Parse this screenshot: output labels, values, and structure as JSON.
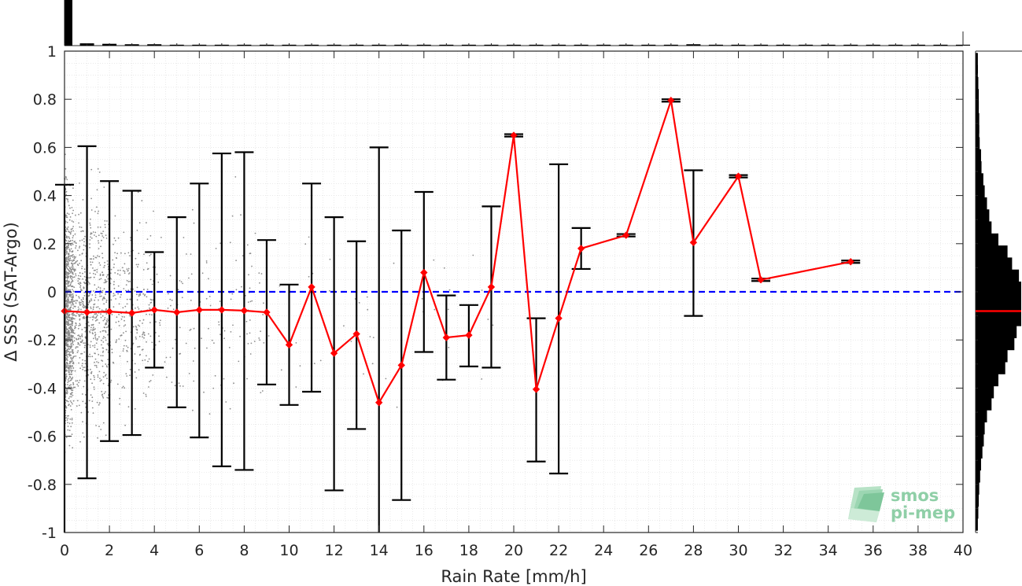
{
  "chart_data": {
    "type": "line",
    "xlabel": "Rain Rate [mm/h]",
    "ylabel": "Δ SSS (SAT-Argo)",
    "xlim": [
      0,
      40
    ],
    "ylim": [
      -1,
      1
    ],
    "x_ticks": [
      0,
      2,
      4,
      6,
      8,
      10,
      12,
      14,
      16,
      18,
      20,
      22,
      24,
      26,
      28,
      30,
      32,
      34,
      36,
      38,
      40
    ],
    "x_tick_labels": [
      "0",
      "2",
      "4",
      "6",
      "8",
      "10",
      "12",
      "14",
      "16",
      "18",
      "20",
      "22",
      "24",
      "26",
      "28",
      "30",
      "32",
      "34",
      "36",
      "38",
      "40"
    ],
    "y_ticks": [
      1,
      0.8,
      0.6,
      0.4,
      0.2,
      0,
      -0.2,
      -0.4,
      -0.6,
      -0.8,
      -1
    ],
    "y_tick_labels": [
      "1",
      "0.8",
      "0.6",
      "0.4",
      "0.2",
      "0",
      "-0.2",
      "-0.4",
      "-0.6",
      "-0.8",
      "-1"
    ],
    "grid": "minor dotted",
    "reference_line": {
      "y": 0,
      "color": "#0000ff",
      "style": "dashed"
    },
    "mean_series": {
      "color": "#ff0000",
      "x": [
        0,
        1,
        2,
        3,
        4,
        5,
        6,
        7,
        8,
        9,
        10,
        11,
        12,
        13,
        14,
        15,
        16,
        17,
        18,
        19,
        20,
        21,
        22,
        23,
        25,
        27,
        28,
        30,
        31,
        35
      ],
      "mean": [
        -0.08,
        -0.085,
        -0.082,
        -0.088,
        -0.075,
        -0.085,
        -0.075,
        -0.075,
        -0.078,
        -0.085,
        -0.22,
        0.02,
        -0.255,
        -0.175,
        -0.46,
        -0.305,
        0.08,
        -0.19,
        -0.18,
        0.02,
        0.65,
        -0.405,
        -0.11,
        0.18,
        0.235,
        0.795,
        0.205,
        0.48,
        0.05,
        0.125
      ],
      "upper": [
        0.445,
        0.605,
        0.46,
        0.42,
        0.165,
        0.31,
        0.45,
        0.575,
        0.58,
        0.215,
        0.03,
        0.45,
        0.31,
        0.21,
        0.6,
        0.255,
        0.415,
        -0.015,
        -0.055,
        0.355,
        0.655,
        -0.11,
        0.53,
        0.265,
        0.24,
        0.8,
        0.505,
        0.485,
        0.055,
        0.13
      ],
      "lower": [
        -1,
        -0.775,
        -0.62,
        -0.595,
        -0.315,
        -0.48,
        -0.605,
        -0.725,
        -0.74,
        -0.385,
        -0.47,
        -0.415,
        -0.825,
        -0.57,
        -1,
        -0.865,
        -0.25,
        -0.365,
        -0.31,
        -0.315,
        0.645,
        -0.705,
        -0.755,
        0.095,
        0.23,
        0.79,
        -0.1,
        0.475,
        0.045,
        0.12
      ]
    },
    "scatter_color": "#8c8c8c",
    "top_histogram": {
      "bin_centers": [
        0.25,
        1,
        2,
        3,
        4,
        5,
        6,
        7,
        8,
        9,
        10,
        11,
        12,
        13,
        14,
        15,
        16,
        17,
        18,
        19,
        20,
        21,
        22,
        23,
        24,
        25,
        26,
        27,
        28,
        29,
        30,
        31,
        32,
        33,
        34,
        35,
        36,
        37,
        38,
        39,
        40
      ],
      "relative_heights": [
        1.0,
        0.05,
        0.04,
        0.03,
        0.03,
        0.02,
        0.02,
        0.02,
        0.02,
        0.02,
        0.02,
        0.02,
        0.02,
        0.02,
        0.02,
        0.02,
        0.02,
        0.02,
        0.02,
        0.02,
        0.02,
        0.02,
        0.02,
        0.02,
        0.02,
        0.02,
        0.02,
        0.02,
        0.03,
        0.02,
        0.02,
        0.02,
        0.02,
        0.02,
        0.02,
        0.02,
        0.02,
        0.02,
        0.02,
        0.02,
        0.02
      ]
    },
    "right_histogram": {
      "bin_centers": [
        0.95,
        0.9,
        0.85,
        0.8,
        0.75,
        0.7,
        0.65,
        0.6,
        0.55,
        0.5,
        0.45,
        0.4,
        0.35,
        0.3,
        0.25,
        0.2,
        0.15,
        0.1,
        0.05,
        0.0,
        -0.05,
        -0.1,
        -0.15,
        -0.2,
        -0.25,
        -0.3,
        -0.35,
        -0.4,
        -0.45,
        -0.5,
        -0.55,
        -0.6,
        -0.65,
        -0.7,
        -0.75,
        -0.8,
        -0.85,
        -0.9,
        -0.95
      ],
      "relative_widths": [
        0.05,
        0.05,
        0.06,
        0.07,
        0.07,
        0.08,
        0.08,
        0.09,
        0.12,
        0.13,
        0.17,
        0.2,
        0.25,
        0.3,
        0.35,
        0.5,
        0.7,
        0.8,
        0.95,
        1.0,
        1.0,
        1.0,
        0.9,
        0.85,
        0.7,
        0.65,
        0.5,
        0.4,
        0.35,
        0.25,
        0.2,
        0.18,
        0.15,
        0.12,
        0.1,
        0.08,
        0.07,
        0.06,
        0.05
      ],
      "mean_marker": {
        "y": -0.08,
        "color": "#ff0000"
      }
    }
  },
  "logo": {
    "line1": "smos",
    "line2": "pi-mep"
  }
}
